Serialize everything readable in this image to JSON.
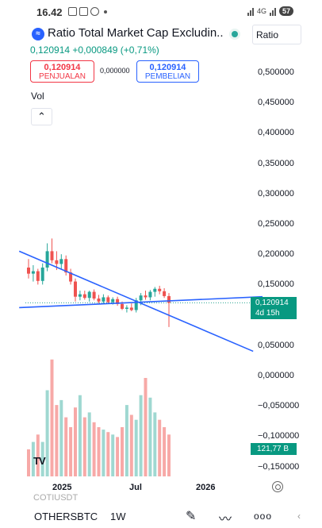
{
  "status": {
    "time": "16.42",
    "network": "4G",
    "battery": "57"
  },
  "header": {
    "title": "Ratio Total Market Cap Excludin...",
    "logo_icon": "ratio-logo-icon",
    "scale_label": "Ratio",
    "price_line": "0,120914 +0,000849 (+0,71%)"
  },
  "trade": {
    "sell_value": "0,120914",
    "sell_label": "PENJUALAN",
    "spread": "0,000000",
    "buy_value": "0,120914",
    "buy_label": "PEMBELIAN"
  },
  "volume_legend": "Vol",
  "price_axis": [
    "0,500000",
    "0,450000",
    "0,400000",
    "0,350000",
    "0,300000",
    "0,250000",
    "0,200000",
    "0,150000",
    "0,050000",
    "0,000000",
    "−0,050000",
    "−0,100000",
    "−0,150000"
  ],
  "current_price": {
    "value": "0,120914",
    "countdown": "4d 15h"
  },
  "volume_tag": "121,77 B",
  "time_axis": [
    "2025",
    "Jul",
    "2026"
  ],
  "toolbar": {
    "symbol": "OTHERSBTC",
    "ghost_symbol": "COTIUSDT",
    "timeframe": "1W",
    "more_label": "ooo"
  },
  "colors": {
    "up": "#26a69a",
    "down": "#ef5350",
    "trendline": "#2962ff",
    "accent": "#089981"
  },
  "chart_data": {
    "type": "candlestick",
    "symbol": "OTHERSBTC",
    "interval": "1W",
    "ylim": [
      -0.17,
      0.54
    ],
    "candles": [
      {
        "o": 0.178,
        "h": 0.192,
        "l": 0.16,
        "c": 0.168
      },
      {
        "o": 0.168,
        "h": 0.182,
        "l": 0.155,
        "c": 0.172
      },
      {
        "o": 0.172,
        "h": 0.176,
        "l": 0.15,
        "c": 0.156
      },
      {
        "o": 0.156,
        "h": 0.185,
        "l": 0.15,
        "c": 0.178
      },
      {
        "o": 0.178,
        "h": 0.218,
        "l": 0.172,
        "c": 0.205
      },
      {
        "o": 0.205,
        "h": 0.226,
        "l": 0.185,
        "c": 0.19
      },
      {
        "o": 0.19,
        "h": 0.205,
        "l": 0.174,
        "c": 0.184
      },
      {
        "o": 0.184,
        "h": 0.2,
        "l": 0.175,
        "c": 0.192
      },
      {
        "o": 0.192,
        "h": 0.198,
        "l": 0.165,
        "c": 0.17
      },
      {
        "o": 0.17,
        "h": 0.176,
        "l": 0.15,
        "c": 0.155
      },
      {
        "o": 0.155,
        "h": 0.16,
        "l": 0.122,
        "c": 0.13
      },
      {
        "o": 0.13,
        "h": 0.14,
        "l": 0.124,
        "c": 0.134
      },
      {
        "o": 0.134,
        "h": 0.14,
        "l": 0.125,
        "c": 0.128
      },
      {
        "o": 0.128,
        "h": 0.14,
        "l": 0.122,
        "c": 0.138
      },
      {
        "o": 0.138,
        "h": 0.142,
        "l": 0.124,
        "c": 0.127
      },
      {
        "o": 0.127,
        "h": 0.133,
        "l": 0.119,
        "c": 0.122
      },
      {
        "o": 0.122,
        "h": 0.134,
        "l": 0.118,
        "c": 0.129
      },
      {
        "o": 0.129,
        "h": 0.132,
        "l": 0.119,
        "c": 0.121
      },
      {
        "o": 0.121,
        "h": 0.129,
        "l": 0.117,
        "c": 0.126
      },
      {
        "o": 0.126,
        "h": 0.13,
        "l": 0.115,
        "c": 0.118
      },
      {
        "o": 0.118,
        "h": 0.122,
        "l": 0.108,
        "c": 0.11
      },
      {
        "o": 0.11,
        "h": 0.116,
        "l": 0.104,
        "c": 0.112
      },
      {
        "o": 0.112,
        "h": 0.119,
        "l": 0.106,
        "c": 0.108
      },
      {
        "o": 0.108,
        "h": 0.128,
        "l": 0.104,
        "c": 0.124
      },
      {
        "o": 0.124,
        "h": 0.136,
        "l": 0.116,
        "c": 0.132
      },
      {
        "o": 0.132,
        "h": 0.14,
        "l": 0.125,
        "c": 0.129
      },
      {
        "o": 0.129,
        "h": 0.141,
        "l": 0.124,
        "c": 0.138
      },
      {
        "o": 0.138,
        "h": 0.146,
        "l": 0.13,
        "c": 0.143
      },
      {
        "o": 0.143,
        "h": 0.148,
        "l": 0.134,
        "c": 0.139
      },
      {
        "o": 0.139,
        "h": 0.144,
        "l": 0.128,
        "c": 0.131
      },
      {
        "o": 0.131,
        "h": 0.136,
        "l": 0.08,
        "c": 0.12
      }
    ],
    "volume": [
      22,
      28,
      34,
      28,
      70,
      95,
      58,
      62,
      48,
      40,
      56,
      66,
      48,
      52,
      44,
      40,
      38,
      36,
      34,
      32,
      40,
      58,
      50,
      46,
      66,
      80,
      64,
      52,
      46,
      40,
      34
    ],
    "trendlines": [
      {
        "from": {
          "bar": -2,
          "price": 0.205
        },
        "to": {
          "bar": 48,
          "price": 0.04
        }
      },
      {
        "from": {
          "bar": -2,
          "price": 0.112
        },
        "to": {
          "bar": 50,
          "price": 0.13
        }
      }
    ],
    "price_axis_labels": [
      "0,500000",
      "0,450000",
      "0,400000",
      "0,350000",
      "0,300000",
      "0,250000",
      "0,200000",
      "0,150000",
      "0,050000",
      "0,000000",
      "−0,050000",
      "−0,100000",
      "−0,150000"
    ],
    "time_axis_labels": [
      "2025",
      "Jul",
      "2026"
    ]
  }
}
